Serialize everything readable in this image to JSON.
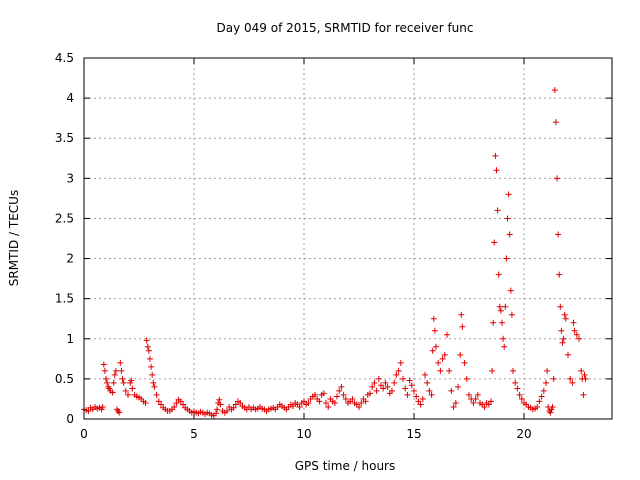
{
  "chart_data": {
    "type": "scatter",
    "title": "Day 049 of 2015, SRMTID for receiver func",
    "xlabel": "GPS time / hours",
    "ylabel": "SRMTID / TECUs",
    "xlim": [
      0,
      24
    ],
    "ylim": [
      0,
      4.5
    ],
    "xticks": [
      0,
      5,
      10,
      15,
      20
    ],
    "xtick_labels": [
      "0",
      "5",
      "10",
      "15",
      "20"
    ],
    "yticks": [
      0,
      0.5,
      1,
      1.5,
      2,
      2.5,
      3,
      3.5,
      4,
      4.5
    ],
    "ytick_labels": [
      "0",
      "0.5",
      "1",
      "1.5",
      "2",
      "2.5",
      "3",
      "3.5",
      "4",
      "4.5"
    ],
    "grid": true,
    "marker": "+",
    "color": "#e00000",
    "series": [
      {
        "name": "SRMTID",
        "points": [
          [
            0.0,
            0.12
          ],
          [
            0.1,
            0.11
          ],
          [
            0.2,
            0.1
          ],
          [
            0.3,
            0.14
          ],
          [
            0.4,
            0.12
          ],
          [
            0.5,
            0.15
          ],
          [
            0.6,
            0.13
          ],
          [
            0.7,
            0.14
          ],
          [
            0.8,
            0.12
          ],
          [
            0.85,
            0.15
          ],
          [
            0.9,
            0.68
          ],
          [
            0.95,
            0.6
          ],
          [
            1.0,
            0.5
          ],
          [
            1.05,
            0.45
          ],
          [
            1.1,
            0.4
          ],
          [
            1.15,
            0.38
          ],
          [
            1.2,
            0.35
          ],
          [
            1.3,
            0.33
          ],
          [
            1.35,
            0.45
          ],
          [
            1.4,
            0.55
          ],
          [
            1.45,
            0.6
          ],
          [
            1.5,
            0.12
          ],
          [
            1.55,
            0.1
          ],
          [
            1.6,
            0.08
          ],
          [
            1.65,
            0.7
          ],
          [
            1.7,
            0.6
          ],
          [
            1.75,
            0.5
          ],
          [
            1.8,
            0.45
          ],
          [
            1.9,
            0.35
          ],
          [
            2.0,
            0.3
          ],
          [
            2.1,
            0.45
          ],
          [
            2.15,
            0.48
          ],
          [
            2.2,
            0.38
          ],
          [
            2.3,
            0.3
          ],
          [
            2.4,
            0.28
          ],
          [
            2.5,
            0.27
          ],
          [
            2.6,
            0.25
          ],
          [
            2.7,
            0.22
          ],
          [
            2.8,
            0.2
          ],
          [
            2.85,
            0.98
          ],
          [
            2.9,
            0.9
          ],
          [
            2.95,
            0.85
          ],
          [
            3.0,
            0.75
          ],
          [
            3.05,
            0.65
          ],
          [
            3.1,
            0.55
          ],
          [
            3.15,
            0.45
          ],
          [
            3.2,
            0.4
          ],
          [
            3.3,
            0.3
          ],
          [
            3.4,
            0.22
          ],
          [
            3.5,
            0.18
          ],
          [
            3.6,
            0.14
          ],
          [
            3.7,
            0.12
          ],
          [
            3.8,
            0.1
          ],
          [
            3.9,
            0.1
          ],
          [
            4.0,
            0.12
          ],
          [
            4.1,
            0.15
          ],
          [
            4.2,
            0.2
          ],
          [
            4.3,
            0.24
          ],
          [
            4.4,
            0.22
          ],
          [
            4.5,
            0.18
          ],
          [
            4.6,
            0.14
          ],
          [
            4.7,
            0.12
          ],
          [
            4.8,
            0.1
          ],
          [
            4.9,
            0.08
          ],
          [
            5.0,
            0.09
          ],
          [
            5.1,
            0.08
          ],
          [
            5.2,
            0.07
          ],
          [
            5.3,
            0.09
          ],
          [
            5.4,
            0.08
          ],
          [
            5.5,
            0.06
          ],
          [
            5.6,
            0.08
          ],
          [
            5.7,
            0.07
          ],
          [
            5.8,
            0.05
          ],
          [
            5.9,
            0.04
          ],
          [
            6.0,
            0.07
          ],
          [
            6.05,
            0.12
          ],
          [
            6.1,
            0.2
          ],
          [
            6.15,
            0.24
          ],
          [
            6.2,
            0.18
          ],
          [
            6.3,
            0.1
          ],
          [
            6.4,
            0.08
          ],
          [
            6.5,
            0.1
          ],
          [
            6.6,
            0.15
          ],
          [
            6.7,
            0.12
          ],
          [
            6.8,
            0.14
          ],
          [
            6.9,
            0.18
          ],
          [
            7.0,
            0.22
          ],
          [
            7.1,
            0.2
          ],
          [
            7.2,
            0.16
          ],
          [
            7.3,
            0.14
          ],
          [
            7.4,
            0.12
          ],
          [
            7.5,
            0.15
          ],
          [
            7.6,
            0.12
          ],
          [
            7.7,
            0.14
          ],
          [
            7.8,
            0.12
          ],
          [
            7.9,
            0.13
          ],
          [
            8.0,
            0.15
          ],
          [
            8.1,
            0.13
          ],
          [
            8.2,
            0.12
          ],
          [
            8.3,
            0.1
          ],
          [
            8.4,
            0.12
          ],
          [
            8.5,
            0.13
          ],
          [
            8.6,
            0.14
          ],
          [
            8.7,
            0.12
          ],
          [
            8.8,
            0.15
          ],
          [
            8.9,
            0.18
          ],
          [
            9.0,
            0.16
          ],
          [
            9.1,
            0.14
          ],
          [
            9.2,
            0.12
          ],
          [
            9.3,
            0.15
          ],
          [
            9.4,
            0.18
          ],
          [
            9.5,
            0.16
          ],
          [
            9.6,
            0.2
          ],
          [
            9.7,
            0.18
          ],
          [
            9.8,
            0.15
          ],
          [
            9.9,
            0.2
          ],
          [
            10.0,
            0.22
          ],
          [
            10.1,
            0.18
          ],
          [
            10.2,
            0.2
          ],
          [
            10.3,
            0.25
          ],
          [
            10.4,
            0.28
          ],
          [
            10.5,
            0.3
          ],
          [
            10.6,
            0.25
          ],
          [
            10.7,
            0.22
          ],
          [
            10.8,
            0.3
          ],
          [
            10.9,
            0.32
          ],
          [
            11.0,
            0.2
          ],
          [
            11.1,
            0.15
          ],
          [
            11.2,
            0.25
          ],
          [
            11.3,
            0.22
          ],
          [
            11.4,
            0.2
          ],
          [
            11.5,
            0.28
          ],
          [
            11.6,
            0.35
          ],
          [
            11.7,
            0.4
          ],
          [
            11.8,
            0.3
          ],
          [
            11.9,
            0.25
          ],
          [
            12.0,
            0.2
          ],
          [
            12.1,
            0.22
          ],
          [
            12.2,
            0.25
          ],
          [
            12.3,
            0.2
          ],
          [
            12.4,
            0.18
          ],
          [
            12.5,
            0.15
          ],
          [
            12.6,
            0.2
          ],
          [
            12.7,
            0.25
          ],
          [
            12.8,
            0.22
          ],
          [
            12.9,
            0.3
          ],
          [
            13.0,
            0.32
          ],
          [
            13.1,
            0.4
          ],
          [
            13.2,
            0.45
          ],
          [
            13.3,
            0.35
          ],
          [
            13.4,
            0.5
          ],
          [
            13.5,
            0.42
          ],
          [
            13.6,
            0.38
          ],
          [
            13.7,
            0.45
          ],
          [
            13.8,
            0.4
          ],
          [
            13.9,
            0.32
          ],
          [
            14.0,
            0.35
          ],
          [
            14.1,
            0.45
          ],
          [
            14.2,
            0.55
          ],
          [
            14.3,
            0.6
          ],
          [
            14.4,
            0.7
          ],
          [
            14.5,
            0.5
          ],
          [
            14.6,
            0.38
          ],
          [
            14.7,
            0.3
          ],
          [
            14.8,
            0.48
          ],
          [
            14.9,
            0.42
          ],
          [
            15.0,
            0.35
          ],
          [
            15.1,
            0.28
          ],
          [
            15.2,
            0.22
          ],
          [
            15.3,
            0.18
          ],
          [
            15.4,
            0.25
          ],
          [
            15.5,
            0.55
          ],
          [
            15.6,
            0.45
          ],
          [
            15.7,
            0.35
          ],
          [
            15.8,
            0.3
          ],
          [
            15.85,
            0.85
          ],
          [
            15.9,
            1.25
          ],
          [
            15.95,
            1.1
          ],
          [
            16.0,
            0.9
          ],
          [
            16.1,
            0.7
          ],
          [
            16.2,
            0.6
          ],
          [
            16.3,
            0.75
          ],
          [
            16.4,
            0.8
          ],
          [
            16.5,
            1.05
          ],
          [
            16.6,
            0.6
          ],
          [
            16.7,
            0.35
          ],
          [
            16.8,
            0.15
          ],
          [
            16.9,
            0.2
          ],
          [
            17.0,
            0.4
          ],
          [
            17.1,
            0.8
          ],
          [
            17.15,
            1.3
          ],
          [
            17.2,
            1.15
          ],
          [
            17.3,
            0.7
          ],
          [
            17.4,
            0.5
          ],
          [
            17.5,
            0.3
          ],
          [
            17.6,
            0.25
          ],
          [
            17.7,
            0.2
          ],
          [
            17.8,
            0.25
          ],
          [
            17.9,
            0.3
          ],
          [
            18.0,
            0.2
          ],
          [
            18.1,
            0.18
          ],
          [
            18.2,
            0.15
          ],
          [
            18.3,
            0.2
          ],
          [
            18.4,
            0.18
          ],
          [
            18.5,
            0.22
          ],
          [
            18.55,
            0.6
          ],
          [
            18.6,
            1.2
          ],
          [
            18.65,
            2.2
          ],
          [
            18.7,
            3.28
          ],
          [
            18.75,
            3.1
          ],
          [
            18.8,
            2.6
          ],
          [
            18.85,
            1.8
          ],
          [
            18.9,
            1.4
          ],
          [
            18.95,
            1.35
          ],
          [
            19.0,
            1.2
          ],
          [
            19.05,
            1.0
          ],
          [
            19.1,
            0.9
          ],
          [
            19.15,
            1.4
          ],
          [
            19.2,
            2.0
          ],
          [
            19.25,
            2.5
          ],
          [
            19.3,
            2.8
          ],
          [
            19.35,
            2.3
          ],
          [
            19.4,
            1.6
          ],
          [
            19.45,
            1.3
          ],
          [
            19.5,
            0.6
          ],
          [
            19.6,
            0.45
          ],
          [
            19.7,
            0.38
          ],
          [
            19.8,
            0.3
          ],
          [
            19.9,
            0.25
          ],
          [
            20.0,
            0.2
          ],
          [
            20.1,
            0.18
          ],
          [
            20.2,
            0.15
          ],
          [
            20.3,
            0.14
          ],
          [
            20.4,
            0.12
          ],
          [
            20.5,
            0.13
          ],
          [
            20.6,
            0.15
          ],
          [
            20.7,
            0.22
          ],
          [
            20.8,
            0.28
          ],
          [
            20.9,
            0.35
          ],
          [
            21.0,
            0.45
          ],
          [
            21.05,
            0.6
          ],
          [
            21.1,
            0.15
          ],
          [
            21.15,
            0.1
          ],
          [
            21.2,
            0.08
          ],
          [
            21.25,
            0.12
          ],
          [
            21.3,
            0.15
          ],
          [
            21.35,
            0.5
          ],
          [
            21.4,
            4.1
          ],
          [
            21.45,
            3.7
          ],
          [
            21.5,
            3.0
          ],
          [
            21.55,
            2.3
          ],
          [
            21.6,
            1.8
          ],
          [
            21.65,
            1.4
          ],
          [
            21.7,
            1.1
          ],
          [
            21.75,
            0.95
          ],
          [
            21.8,
            1.0
          ],
          [
            21.85,
            1.3
          ],
          [
            21.9,
            1.25
          ],
          [
            22.0,
            0.8
          ],
          [
            22.1,
            0.5
          ],
          [
            22.2,
            0.45
          ],
          [
            22.25,
            1.2
          ],
          [
            22.3,
            1.1
          ],
          [
            22.4,
            1.05
          ],
          [
            22.5,
            1.0
          ],
          [
            22.6,
            0.6
          ],
          [
            22.65,
            0.5
          ],
          [
            22.7,
            0.3
          ],
          [
            22.75,
            0.55
          ],
          [
            22.8,
            0.5
          ]
        ]
      }
    ]
  }
}
